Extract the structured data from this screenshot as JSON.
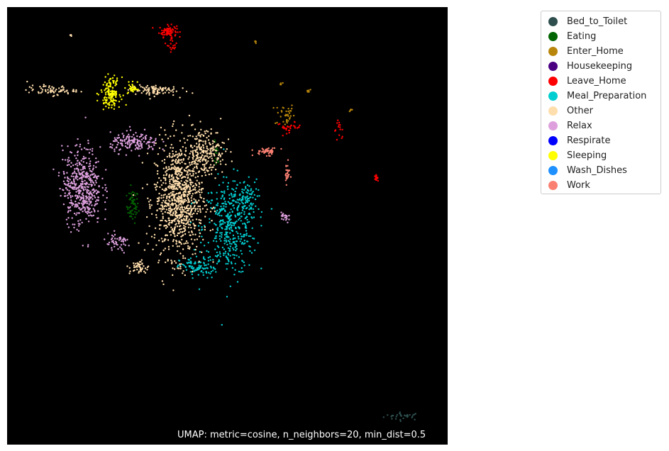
{
  "chart_data": {
    "type": "scatter",
    "title": "",
    "xlabel": "",
    "ylabel": "",
    "grid": false,
    "axes_visible": false,
    "background": "#000000",
    "xlim": [
      0,
      100
    ],
    "ylim": [
      0,
      100
    ],
    "legend_position": "outside-top-right",
    "annotation": "UMAP: metric=cosine, n_neighbors=20, min_dist=0.5",
    "series": [
      {
        "name": "Bed_to_Toilet",
        "color": "#2f4f4f",
        "clusters": [
          {
            "cx": 90,
            "cy": 6.5,
            "rx": 4,
            "ry": 0.8,
            "n": 30
          }
        ]
      },
      {
        "name": "Eating",
        "color": "#006400",
        "clusters": [
          {
            "cx": 28.5,
            "cy": 54.5,
            "rx": 1.2,
            "ry": 3.5,
            "n": 60
          },
          {
            "cx": 47.5,
            "cy": 66,
            "rx": 0.6,
            "ry": 3,
            "n": 15
          }
        ]
      },
      {
        "name": "Enter_Home",
        "color": "#b8860b",
        "clusters": [
          {
            "cx": 63,
            "cy": 75.5,
            "rx": 2,
            "ry": 2.5,
            "n": 35
          },
          {
            "cx": 68.5,
            "cy": 81,
            "rx": 0.6,
            "ry": 0.6,
            "n": 6
          },
          {
            "cx": 78,
            "cy": 76.5,
            "rx": 0.5,
            "ry": 0.5,
            "n": 6
          },
          {
            "cx": 56.5,
            "cy": 92,
            "rx": 0.4,
            "ry": 0.4,
            "n": 5
          },
          {
            "cx": 62.5,
            "cy": 82.5,
            "rx": 0.4,
            "ry": 0.4,
            "n": 4
          }
        ]
      },
      {
        "name": "Housekeeping",
        "color": "#4b0082",
        "clusters": []
      },
      {
        "name": "Leave_Home",
        "color": "#ff0000",
        "clusters": [
          {
            "cx": 36.5,
            "cy": 94.5,
            "rx": 1.8,
            "ry": 1.2,
            "n": 80
          },
          {
            "cx": 37.5,
            "cy": 91.5,
            "rx": 1,
            "ry": 1.5,
            "n": 18
          },
          {
            "cx": 64,
            "cy": 72.5,
            "rx": 2.5,
            "ry": 1,
            "n": 30
          },
          {
            "cx": 75.5,
            "cy": 72,
            "rx": 1.2,
            "ry": 2,
            "n": 15
          },
          {
            "cx": 83.7,
            "cy": 61,
            "rx": 0.4,
            "ry": 0.5,
            "n": 14
          }
        ]
      },
      {
        "name": "Meal_Preparation",
        "color": "#00ced1",
        "clusters": [
          {
            "cx": 50.5,
            "cy": 49.5,
            "rx": 5.5,
            "ry": 10,
            "n": 420
          },
          {
            "cx": 54,
            "cy": 56,
            "rx": 2.5,
            "ry": 4,
            "n": 80
          },
          {
            "cx": 43,
            "cy": 40.5,
            "rx": 3.5,
            "ry": 2,
            "n": 80
          }
        ]
      },
      {
        "name": "Other",
        "color": "#ffdead",
        "clusters": [
          {
            "cx": 39,
            "cy": 56,
            "rx": 5,
            "ry": 12,
            "n": 900
          },
          {
            "cx": 45,
            "cy": 67,
            "rx": 4,
            "ry": 5,
            "n": 220
          },
          {
            "cx": 30,
            "cy": 40.5,
            "rx": 2,
            "ry": 1.5,
            "n": 45
          },
          {
            "cx": 10,
            "cy": 81,
            "rx": 5,
            "ry": 1,
            "n": 70
          },
          {
            "cx": 33,
            "cy": 81,
            "rx": 5,
            "ry": 1.2,
            "n": 90
          },
          {
            "cx": 14.5,
            "cy": 93.5,
            "rx": 0.3,
            "ry": 0.3,
            "n": 4
          }
        ]
      },
      {
        "name": "Relax",
        "color": "#dda0dd",
        "clusters": [
          {
            "cx": 17,
            "cy": 59,
            "rx": 4,
            "ry": 8,
            "n": 480
          },
          {
            "cx": 29,
            "cy": 69,
            "rx": 5,
            "ry": 2,
            "n": 160
          },
          {
            "cx": 25,
            "cy": 46,
            "rx": 3,
            "ry": 2,
            "n": 50
          },
          {
            "cx": 63,
            "cy": 52,
            "rx": 0.8,
            "ry": 1.5,
            "n": 22
          }
        ]
      },
      {
        "name": "Respirate",
        "color": "#0000ff",
        "clusters": []
      },
      {
        "name": "Sleeping",
        "color": "#ffff00",
        "clusters": [
          {
            "cx": 23.5,
            "cy": 80.5,
            "rx": 2,
            "ry": 3,
            "n": 140
          },
          {
            "cx": 28.5,
            "cy": 81.5,
            "rx": 1,
            "ry": 1.3,
            "n": 30
          }
        ]
      },
      {
        "name": "Wash_Dishes",
        "color": "#1e90ff",
        "clusters": []
      },
      {
        "name": "Work",
        "color": "#fa8072",
        "clusters": [
          {
            "cx": 59,
            "cy": 67,
            "rx": 2.5,
            "ry": 0.8,
            "n": 45
          },
          {
            "cx": 63.5,
            "cy": 62,
            "rx": 0.6,
            "ry": 2,
            "n": 25
          }
        ]
      }
    ]
  }
}
